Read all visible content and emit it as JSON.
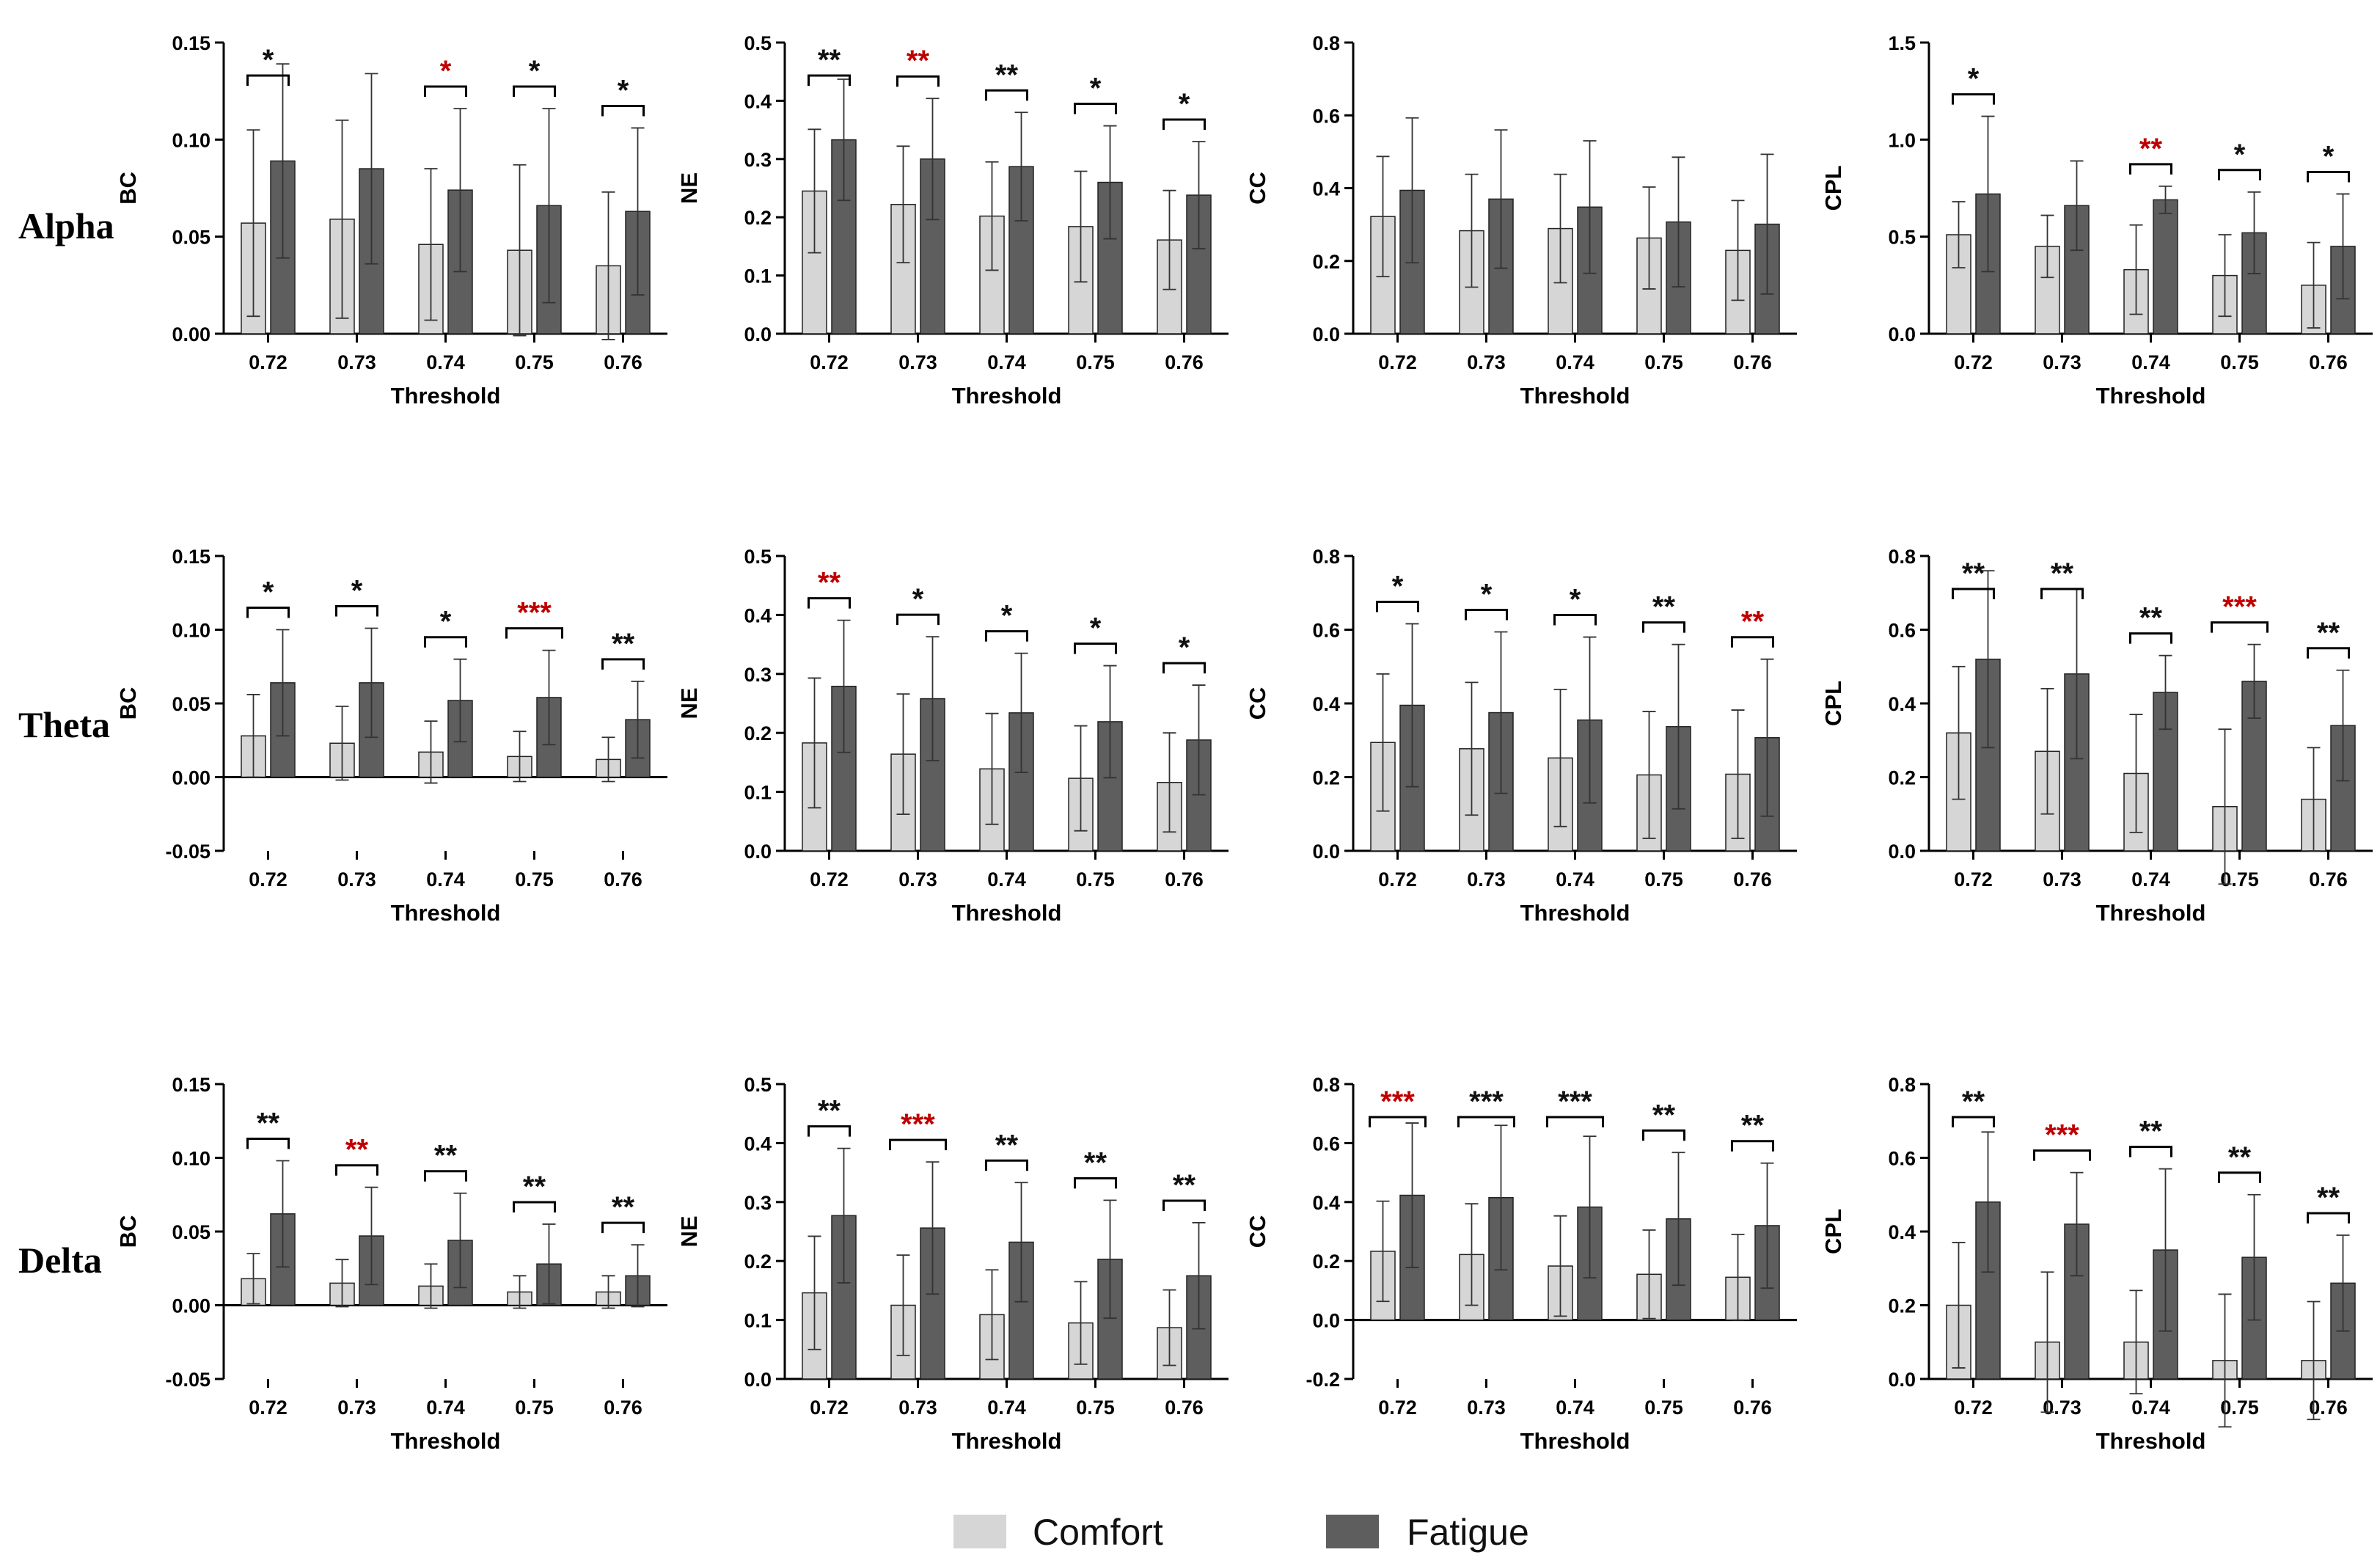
{
  "colors": {
    "comfort": "#d6d6d6",
    "fatigue": "#5e5e5e",
    "sig_black": "#111111",
    "sig_red": "#c00000"
  },
  "legend": {
    "comfort_label": "Comfort",
    "fatigue_label": "Fatigue"
  },
  "bands": [
    "Alpha",
    "Theta",
    "Delta"
  ],
  "chart_data": [
    {
      "type": "bar",
      "band": "Alpha",
      "metric": "BC",
      "ylabel": "BC",
      "xlabel": "Threshold",
      "categories": [
        "0.72",
        "0.73",
        "0.74",
        "0.75",
        "0.76"
      ],
      "ylim": [
        0,
        0.15
      ],
      "yticks": [
        0,
        0.05,
        0.1,
        0.15
      ],
      "ytick_labels": [
        "0.00",
        "0.05",
        "0.10",
        "0.15"
      ],
      "series": [
        {
          "name": "Comfort",
          "values": [
            0.057,
            0.059,
            0.046,
            0.043,
            0.035
          ],
          "err": [
            0.048,
            0.051,
            0.039,
            0.044,
            0.038
          ]
        },
        {
          "name": "Fatigue",
          "values": [
            0.089,
            0.085,
            0.074,
            0.066,
            0.063
          ],
          "err": [
            0.05,
            0.049,
            0.042,
            0.05,
            0.043
          ]
        }
      ],
      "significance": [
        {
          "label": "*",
          "color": "black"
        },
        null,
        {
          "label": "*",
          "color": "red"
        },
        {
          "label": "*",
          "color": "black"
        },
        {
          "label": "*",
          "color": "black"
        }
      ]
    },
    {
      "type": "bar",
      "band": "Alpha",
      "metric": "NE",
      "ylabel": "NE",
      "xlabel": "Threshold",
      "categories": [
        "0.72",
        "0.73",
        "0.74",
        "0.75",
        "0.76"
      ],
      "ylim": [
        0,
        0.5
      ],
      "yticks": [
        0,
        0.1,
        0.2,
        0.3,
        0.4,
        0.5
      ],
      "ytick_labels": [
        "0.0",
        "0.1",
        "0.2",
        "0.3",
        "0.4",
        "0.5"
      ],
      "series": [
        {
          "name": "Comfort",
          "values": [
            0.245,
            0.222,
            0.202,
            0.184,
            0.161
          ],
          "err": [
            0.106,
            0.1,
            0.093,
            0.095,
            0.085
          ]
        },
        {
          "name": "Fatigue",
          "values": [
            0.333,
            0.3,
            0.287,
            0.26,
            0.238
          ],
          "err": [
            0.104,
            0.104,
            0.093,
            0.097,
            0.092
          ]
        }
      ],
      "significance": [
        {
          "label": "**",
          "color": "black"
        },
        {
          "label": "**",
          "color": "red"
        },
        {
          "label": "**",
          "color": "black"
        },
        {
          "label": "*",
          "color": "black"
        },
        {
          "label": "*",
          "color": "black"
        }
      ]
    },
    {
      "type": "bar",
      "band": "Alpha",
      "metric": "CC",
      "ylabel": "CC",
      "xlabel": "Threshold",
      "categories": [
        "0.72",
        "0.73",
        "0.74",
        "0.75",
        "0.76"
      ],
      "ylim": [
        0,
        0.8
      ],
      "yticks": [
        0,
        0.2,
        0.4,
        0.6,
        0.8
      ],
      "ytick_labels": [
        "0.0",
        "0.2",
        "0.4",
        "0.6",
        "0.8"
      ],
      "series": [
        {
          "name": "Comfort",
          "values": [
            0.322,
            0.283,
            0.289,
            0.263,
            0.229
          ],
          "err": [
            0.165,
            0.155,
            0.149,
            0.14,
            0.137
          ]
        },
        {
          "name": "Fatigue",
          "values": [
            0.394,
            0.37,
            0.348,
            0.307,
            0.301
          ],
          "err": [
            0.199,
            0.19,
            0.182,
            0.178,
            0.192
          ]
        }
      ],
      "significance": [
        null,
        null,
        null,
        null,
        null
      ]
    },
    {
      "type": "bar",
      "band": "Alpha",
      "metric": "CPL",
      "ylabel": "CPL",
      "xlabel": "Threshold",
      "categories": [
        "0.72",
        "0.73",
        "0.74",
        "0.75",
        "0.76"
      ],
      "ylim": [
        0,
        1.5
      ],
      "yticks": [
        0,
        0.5,
        1.0,
        1.5
      ],
      "ytick_labels": [
        "0.0",
        "0.5",
        "1.0",
        "1.5"
      ],
      "series": [
        {
          "name": "Comfort",
          "values": [
            0.51,
            0.45,
            0.33,
            0.3,
            0.25
          ],
          "err": [
            0.17,
            0.16,
            0.23,
            0.21,
            0.22
          ]
        },
        {
          "name": "Fatigue",
          "values": [
            0.72,
            0.66,
            0.69,
            0.52,
            0.45
          ],
          "err": [
            0.4,
            0.23,
            0.07,
            0.21,
            0.27
          ]
        }
      ],
      "significance": [
        {
          "label": "*",
          "color": "black"
        },
        null,
        {
          "label": "**",
          "color": "red"
        },
        {
          "label": "*",
          "color": "black"
        },
        {
          "label": "*",
          "color": "black"
        }
      ]
    },
    {
      "type": "bar",
      "band": "Theta",
      "metric": "BC",
      "ylabel": "BC",
      "xlabel": "Threshold",
      "categories": [
        "0.72",
        "0.73",
        "0.74",
        "0.75",
        "0.76"
      ],
      "ylim": [
        -0.05,
        0.15
      ],
      "yticks": [
        -0.05,
        0,
        0.05,
        0.1,
        0.15
      ],
      "ytick_labels": [
        "-0.05",
        "0.00",
        "0.05",
        "0.10",
        "0.15"
      ],
      "series": [
        {
          "name": "Comfort",
          "values": [
            0.028,
            0.023,
            0.017,
            0.014,
            0.012
          ],
          "err": [
            0.028,
            0.025,
            0.021,
            0.017,
            0.015
          ]
        },
        {
          "name": "Fatigue",
          "values": [
            0.064,
            0.064,
            0.052,
            0.054,
            0.039
          ],
          "err": [
            0.036,
            0.037,
            0.028,
            0.032,
            0.026
          ]
        }
      ],
      "significance": [
        {
          "label": "*",
          "color": "black"
        },
        {
          "label": "*",
          "color": "black"
        },
        {
          "label": "*",
          "color": "black"
        },
        {
          "label": "***",
          "color": "red"
        },
        {
          "label": "**",
          "color": "black"
        }
      ]
    },
    {
      "type": "bar",
      "band": "Theta",
      "metric": "NE",
      "ylabel": "NE",
      "xlabel": "Threshold",
      "categories": [
        "0.72",
        "0.73",
        "0.74",
        "0.75",
        "0.76"
      ],
      "ylim": [
        0,
        0.5
      ],
      "yticks": [
        0,
        0.1,
        0.2,
        0.3,
        0.4,
        0.5
      ],
      "ytick_labels": [
        "0.0",
        "0.1",
        "0.2",
        "0.3",
        "0.4",
        "0.5"
      ],
      "series": [
        {
          "name": "Comfort",
          "values": [
            0.183,
            0.164,
            0.139,
            0.123,
            0.116
          ],
          "err": [
            0.11,
            0.102,
            0.094,
            0.089,
            0.084
          ]
        },
        {
          "name": "Fatigue",
          "values": [
            0.279,
            0.258,
            0.234,
            0.219,
            0.188
          ],
          "err": [
            0.112,
            0.105,
            0.101,
            0.095,
            0.093
          ]
        }
      ],
      "significance": [
        {
          "label": "**",
          "color": "red"
        },
        {
          "label": "*",
          "color": "black"
        },
        {
          "label": "*",
          "color": "black"
        },
        {
          "label": "*",
          "color": "black"
        },
        {
          "label": "*",
          "color": "black"
        }
      ]
    },
    {
      "type": "bar",
      "band": "Theta",
      "metric": "CC",
      "ylabel": "CC",
      "xlabel": "Threshold",
      "categories": [
        "0.72",
        "0.73",
        "0.74",
        "0.75",
        "0.76"
      ],
      "ylim": [
        0,
        0.8
      ],
      "yticks": [
        0,
        0.2,
        0.4,
        0.6,
        0.8
      ],
      "ytick_labels": [
        "0.0",
        "0.2",
        "0.4",
        "0.6",
        "0.8"
      ],
      "series": [
        {
          "name": "Comfort",
          "values": [
            0.294,
            0.277,
            0.252,
            0.206,
            0.208
          ],
          "err": [
            0.186,
            0.18,
            0.186,
            0.172,
            0.174
          ]
        },
        {
          "name": "Fatigue",
          "values": [
            0.395,
            0.375,
            0.355,
            0.337,
            0.307
          ],
          "err": [
            0.221,
            0.219,
            0.225,
            0.223,
            0.213
          ]
        }
      ],
      "significance": [
        {
          "label": "*",
          "color": "black"
        },
        {
          "label": "*",
          "color": "black"
        },
        {
          "label": "*",
          "color": "black"
        },
        {
          "label": "**",
          "color": "black"
        },
        {
          "label": "**",
          "color": "red"
        }
      ]
    },
    {
      "type": "bar",
      "band": "Theta",
      "metric": "CPL",
      "ylabel": "CPL",
      "xlabel": "Threshold",
      "categories": [
        "0.72",
        "0.73",
        "0.74",
        "0.75",
        "0.76"
      ],
      "ylim": [
        0,
        0.8
      ],
      "yticks": [
        0,
        0.2,
        0.4,
        0.6,
        0.8
      ],
      "ytick_labels": [
        "0.0",
        "0.2",
        "0.4",
        "0.6",
        "0.8"
      ],
      "series": [
        {
          "name": "Comfort",
          "values": [
            0.32,
            0.27,
            0.21,
            0.12,
            0.14
          ],
          "err": [
            0.18,
            0.17,
            0.16,
            0.21,
            0.14
          ]
        },
        {
          "name": "Fatigue",
          "values": [
            0.52,
            0.48,
            0.43,
            0.46,
            0.34
          ],
          "err": [
            0.24,
            0.23,
            0.1,
            0.1,
            0.15
          ]
        }
      ],
      "significance": [
        {
          "label": "**",
          "color": "black"
        },
        {
          "label": "**",
          "color": "black"
        },
        {
          "label": "**",
          "color": "black"
        },
        {
          "label": "***",
          "color": "red"
        },
        {
          "label": "**",
          "color": "black"
        }
      ]
    },
    {
      "type": "bar",
      "band": "Delta",
      "metric": "BC",
      "ylabel": "BC",
      "xlabel": "Threshold",
      "categories": [
        "0.72",
        "0.73",
        "0.74",
        "0.75",
        "0.76"
      ],
      "ylim": [
        -0.05,
        0.15
      ],
      "yticks": [
        -0.05,
        0,
        0.05,
        0.1,
        0.15
      ],
      "ytick_labels": [
        "-0.05",
        "0.00",
        "0.05",
        "0.10",
        "0.15"
      ],
      "series": [
        {
          "name": "Comfort",
          "values": [
            0.018,
            0.015,
            0.013,
            0.009,
            0.009
          ],
          "err": [
            0.017,
            0.016,
            0.015,
            0.011,
            0.011
          ]
        },
        {
          "name": "Fatigue",
          "values": [
            0.062,
            0.047,
            0.044,
            0.028,
            0.02
          ],
          "err": [
            0.036,
            0.033,
            0.032,
            0.027,
            0.021
          ]
        }
      ],
      "significance": [
        {
          "label": "**",
          "color": "black"
        },
        {
          "label": "**",
          "color": "red"
        },
        {
          "label": "**",
          "color": "black"
        },
        {
          "label": "**",
          "color": "black"
        },
        {
          "label": "**",
          "color": "black"
        }
      ]
    },
    {
      "type": "bar",
      "band": "Delta",
      "metric": "NE",
      "ylabel": "NE",
      "xlabel": "Threshold",
      "categories": [
        "0.72",
        "0.73",
        "0.74",
        "0.75",
        "0.76"
      ],
      "ylim": [
        0,
        0.5
      ],
      "yticks": [
        0,
        0.1,
        0.2,
        0.3,
        0.4,
        0.5
      ],
      "ytick_labels": [
        "0.0",
        "0.1",
        "0.2",
        "0.3",
        "0.4",
        "0.5"
      ],
      "series": [
        {
          "name": "Comfort",
          "values": [
            0.146,
            0.125,
            0.109,
            0.095,
            0.087
          ],
          "err": [
            0.096,
            0.085,
            0.076,
            0.07,
            0.064
          ]
        },
        {
          "name": "Fatigue",
          "values": [
            0.277,
            0.256,
            0.232,
            0.203,
            0.175
          ],
          "err": [
            0.114,
            0.112,
            0.101,
            0.1,
            0.09
          ]
        }
      ],
      "significance": [
        {
          "label": "**",
          "color": "black"
        },
        {
          "label": "***",
          "color": "red"
        },
        {
          "label": "**",
          "color": "black"
        },
        {
          "label": "**",
          "color": "black"
        },
        {
          "label": "**",
          "color": "black"
        }
      ]
    },
    {
      "type": "bar",
      "band": "Delta",
      "metric": "CC",
      "ylabel": "CC",
      "xlabel": "Threshold",
      "categories": [
        "0.72",
        "0.73",
        "0.74",
        "0.75",
        "0.76"
      ],
      "ylim": [
        -0.2,
        0.8
      ],
      "yticks": [
        -0.2,
        0,
        0.2,
        0.4,
        0.6,
        0.8
      ],
      "ytick_labels": [
        "-0.2",
        "0.0",
        "0.2",
        "0.4",
        "0.6",
        "0.8"
      ],
      "series": [
        {
          "name": "Comfort",
          "values": [
            0.233,
            0.222,
            0.183,
            0.155,
            0.145
          ],
          "err": [
            0.17,
            0.172,
            0.17,
            0.15,
            0.145
          ]
        },
        {
          "name": "Fatigue",
          "values": [
            0.423,
            0.415,
            0.383,
            0.343,
            0.32
          ],
          "err": [
            0.245,
            0.245,
            0.24,
            0.225,
            0.212
          ]
        }
      ],
      "significance": [
        {
          "label": "***",
          "color": "red"
        },
        {
          "label": "***",
          "color": "black"
        },
        {
          "label": "***",
          "color": "black"
        },
        {
          "label": "**",
          "color": "black"
        },
        {
          "label": "**",
          "color": "black"
        }
      ]
    },
    {
      "type": "bar",
      "band": "Delta",
      "metric": "CPL",
      "ylabel": "CPL",
      "xlabel": "Threshold",
      "categories": [
        "0.72",
        "0.73",
        "0.74",
        "0.75",
        "0.76"
      ],
      "ylim": [
        0,
        0.8
      ],
      "yticks": [
        0,
        0.2,
        0.4,
        0.6,
        0.8
      ],
      "ytick_labels": [
        "0.0",
        "0.2",
        "0.4",
        "0.6",
        "0.8"
      ],
      "series": [
        {
          "name": "Comfort",
          "values": [
            0.2,
            0.1,
            0.1,
            0.05,
            0.05
          ],
          "err": [
            0.17,
            0.19,
            0.14,
            0.18,
            0.16
          ]
        },
        {
          "name": "Fatigue",
          "values": [
            0.48,
            0.42,
            0.35,
            0.33,
            0.26
          ],
          "err": [
            0.19,
            0.14,
            0.22,
            0.17,
            0.13
          ]
        }
      ],
      "significance": [
        {
          "label": "**",
          "color": "black"
        },
        {
          "label": "***",
          "color": "red"
        },
        {
          "label": "**",
          "color": "black"
        },
        {
          "label": "**",
          "color": "black"
        },
        {
          "label": "**",
          "color": "black"
        }
      ]
    }
  ]
}
